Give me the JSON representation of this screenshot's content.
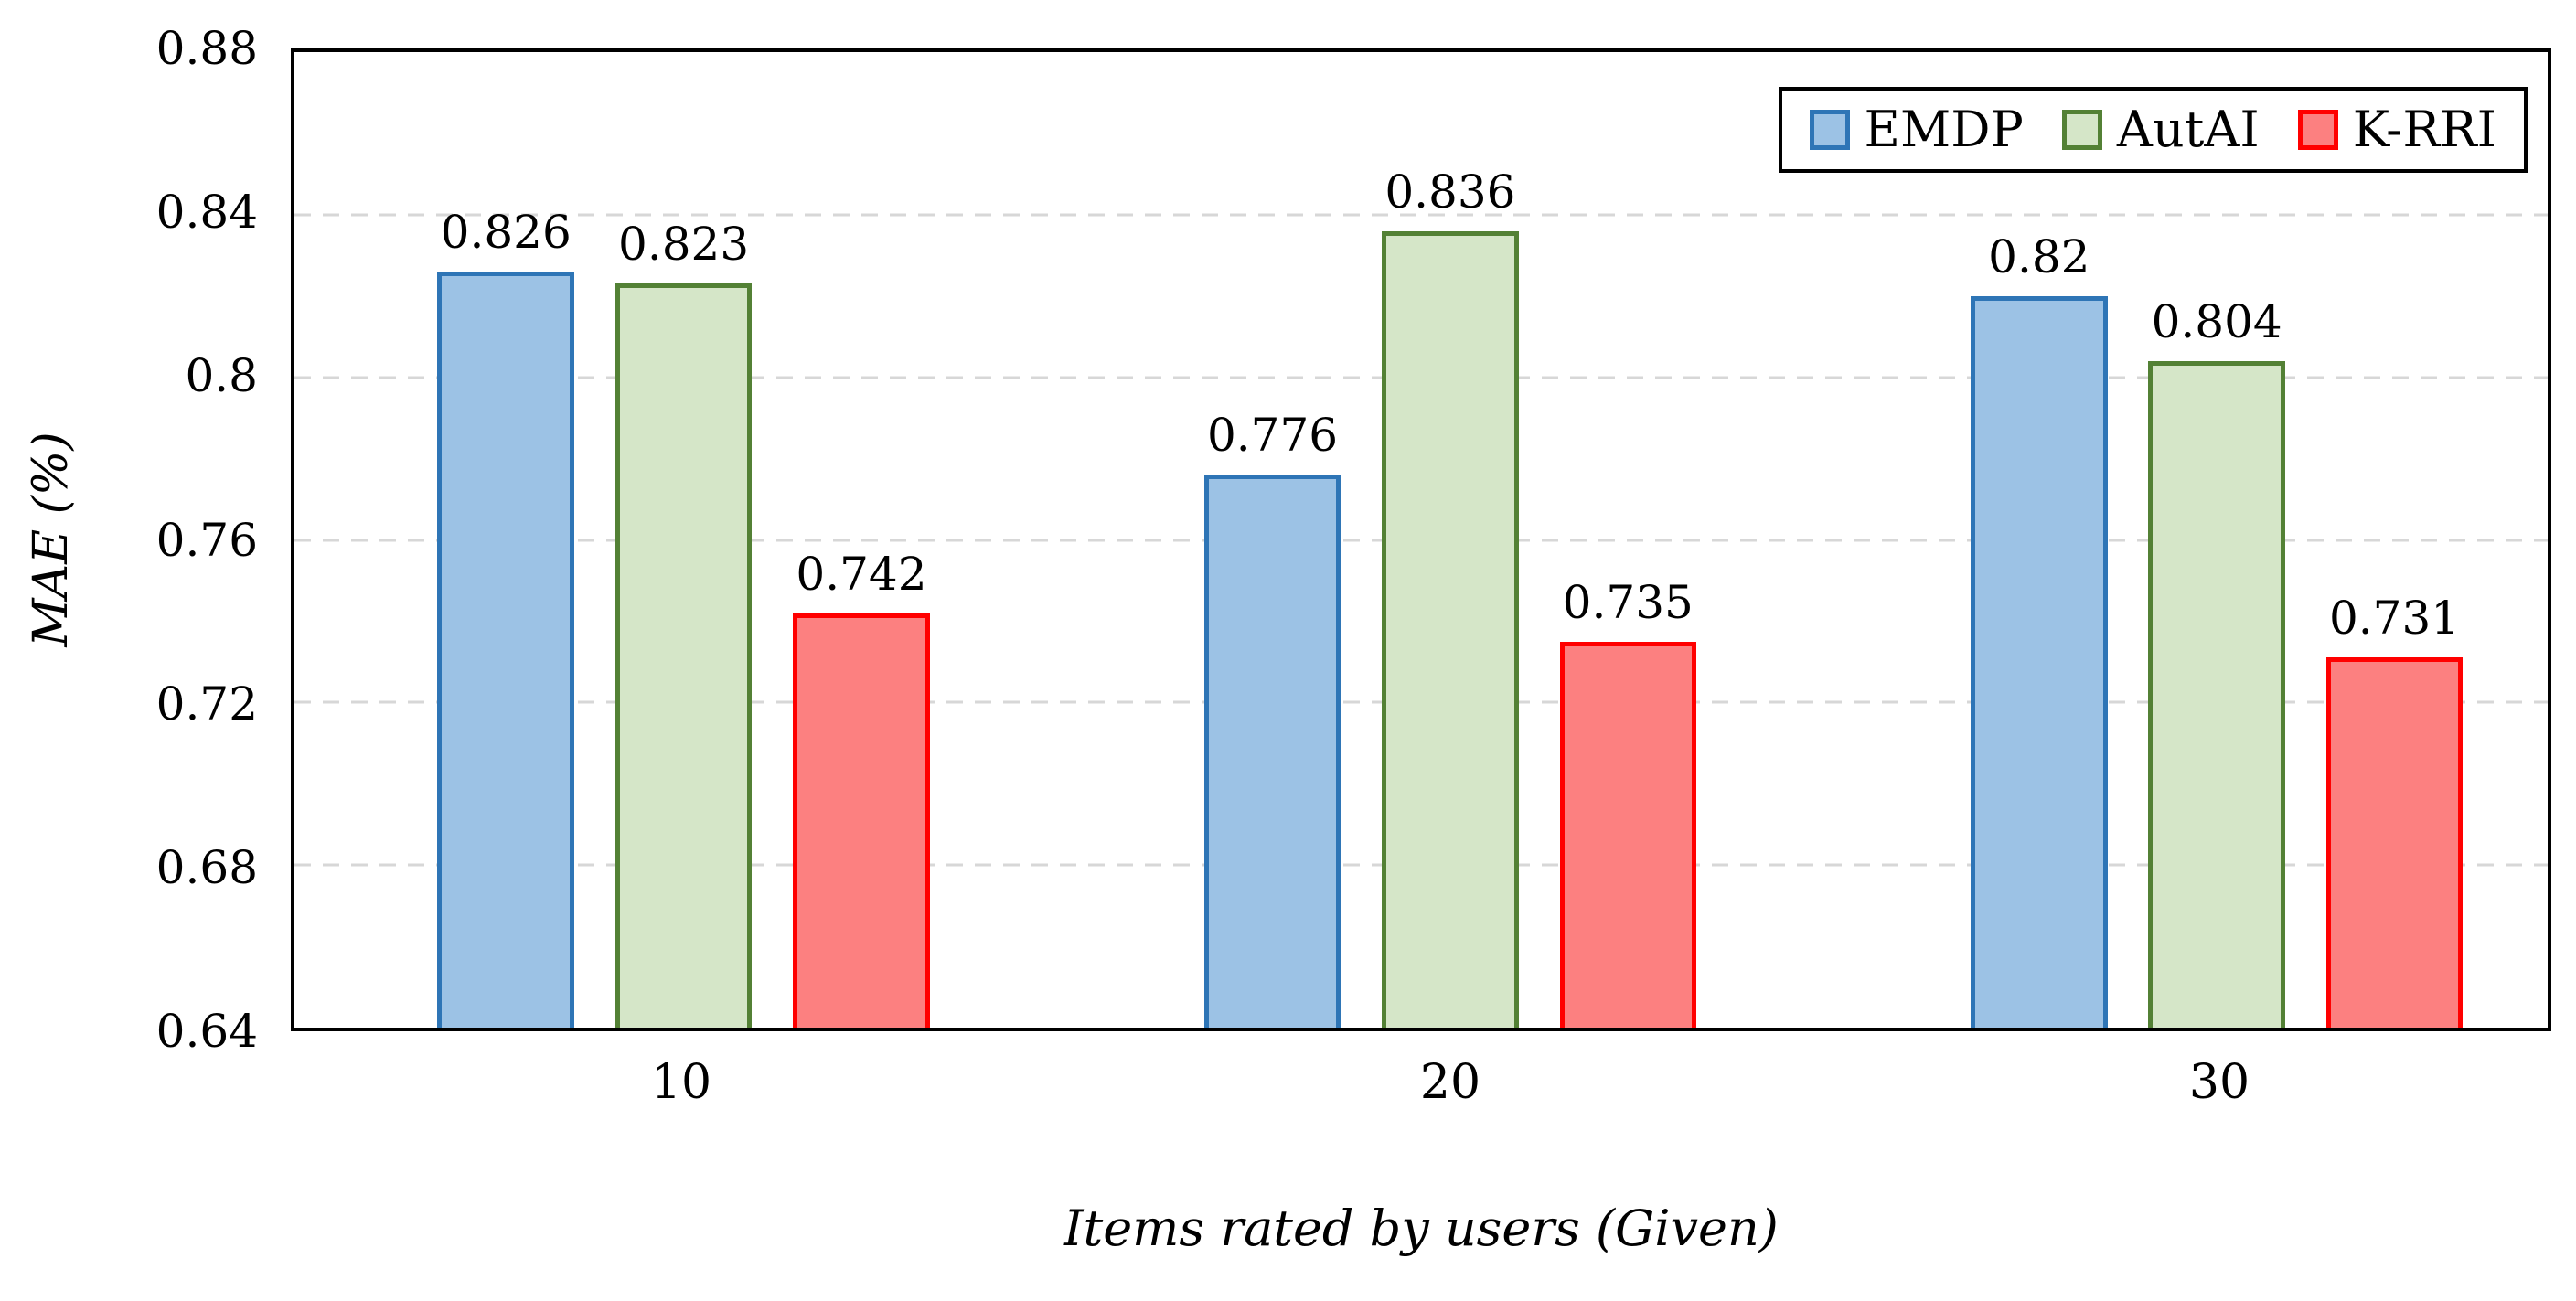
{
  "chart_data": {
    "type": "bar",
    "title": "",
    "xlabel": "Items rated by users (Given)",
    "ylabel": "MAE (%)",
    "categories": [
      "10",
      "20",
      "30"
    ],
    "series": [
      {
        "name": "EMDP",
        "values": [
          0.826,
          0.776,
          0.82
        ],
        "labels": [
          "0.826",
          "0.776",
          "0.82"
        ],
        "fill": "#9CC2E5",
        "stroke": "#2E75B6"
      },
      {
        "name": "AutAI",
        "values": [
          0.823,
          0.836,
          0.804
        ],
        "labels": [
          "0.823",
          "0.836",
          "0.804"
        ],
        "fill": "#D5E6C8",
        "stroke": "#538135"
      },
      {
        "name": "K-RRI",
        "values": [
          0.742,
          0.735,
          0.731
        ],
        "labels": [
          "0.742",
          "0.735",
          "0.731"
        ],
        "fill": "#FC8080",
        "stroke": "#FF0000"
      }
    ],
    "ylim": [
      0.64,
      0.88
    ],
    "yticks": [
      {
        "value": 0.64,
        "label": "0.64"
      },
      {
        "value": 0.68,
        "label": "0.68"
      },
      {
        "value": 0.72,
        "label": "0.72"
      },
      {
        "value": 0.76,
        "label": "0.76"
      },
      {
        "value": 0.8,
        "label": "0.8"
      },
      {
        "value": 0.84,
        "label": "0.84"
      },
      {
        "value": 0.88,
        "label": "0.88"
      }
    ],
    "grid": "horizontal-dashed",
    "gridline_color": "#D7D7D7",
    "axis_color": "#000000",
    "legend_position": "top-right"
  }
}
